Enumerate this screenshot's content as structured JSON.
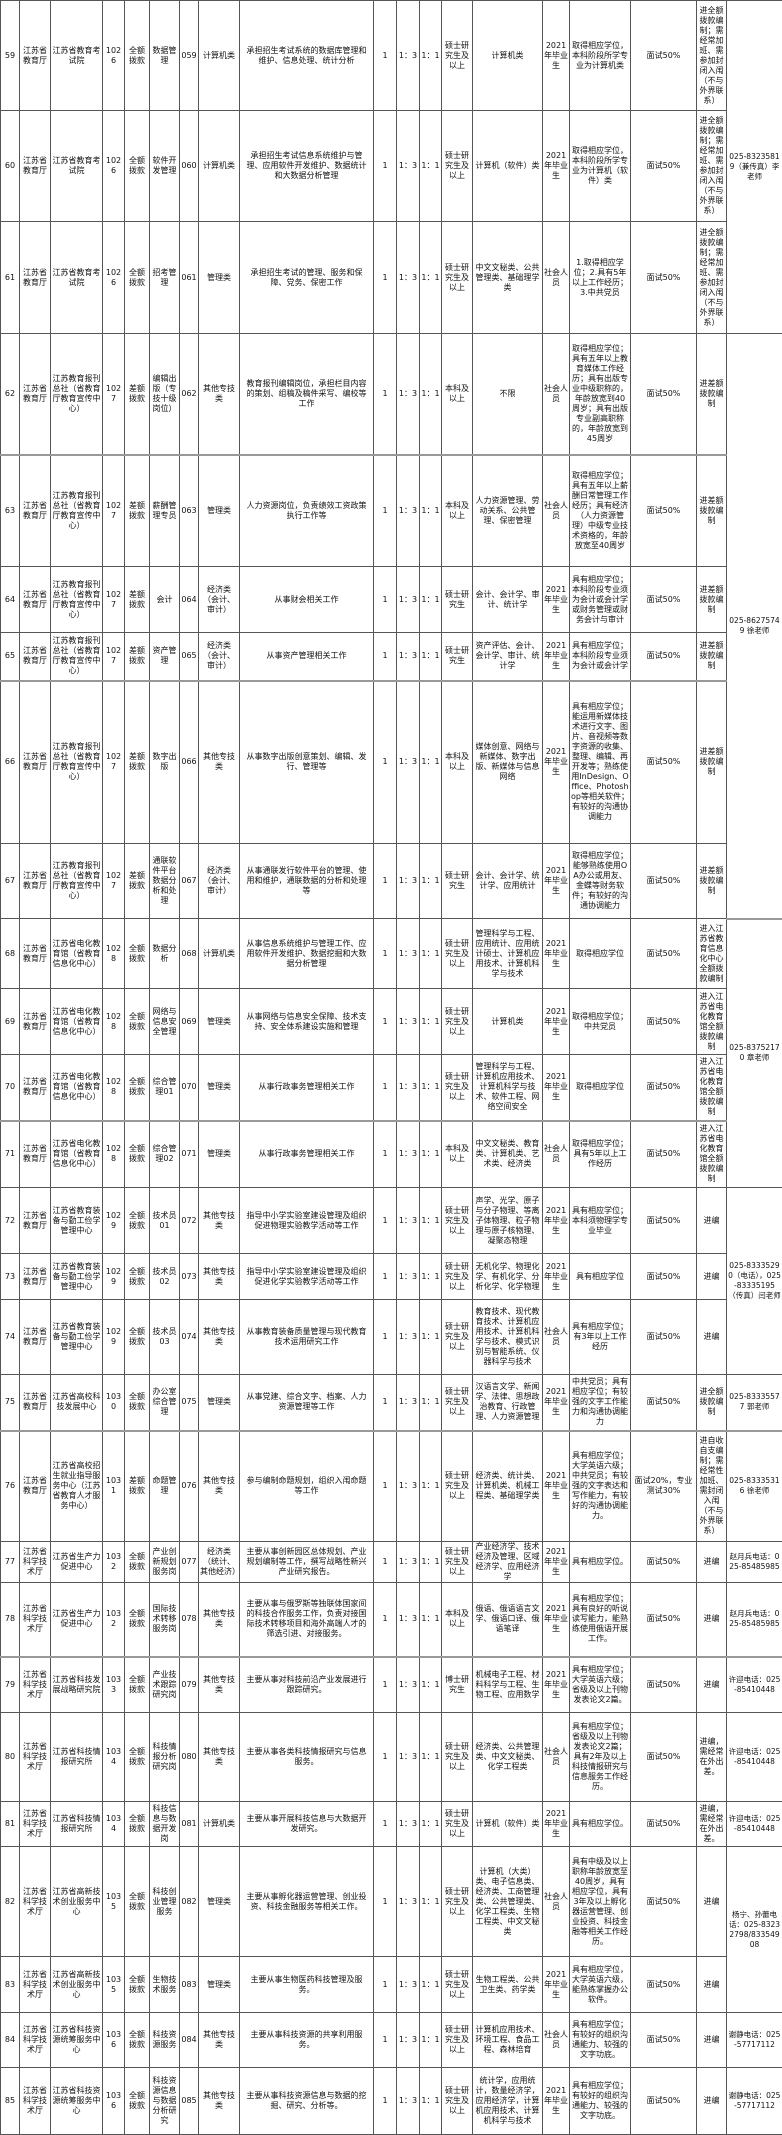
{
  "rows": [
    {
      "no": "59",
      "dept": "江苏省教育厅",
      "unit": "江苏省教育考试院",
      "code": "1026",
      "fund": "全额拨款",
      "pos": "数据管理",
      "pcode": "059",
      "cat": "计算机类",
      "desc": "承担招生考试系统的数据库管理和维护、信息处理、统计分析",
      "n": "1",
      "r1": "1：3",
      "r2": "1：1",
      "edu": "硕士研究生及以上",
      "major": "计算机类",
      "target": "2021年毕业生",
      "cond": "取得相应学位，本科阶段所学专业为计算机类",
      "exam": "面试50%",
      "note": "进全额拨款编制；需经常加班、需参加封闭入闱（不与外界联系）",
      "contact": "025-83235819（兼传真）李老师",
      "span": 3
    },
    {
      "no": "60",
      "dept": "江苏省教育厅",
      "unit": "江苏省教育考试院",
      "code": "1026",
      "fund": "全额拨款",
      "pos": "软件开发管理",
      "pcode": "060",
      "cat": "计算机类",
      "desc": "承担招生考试信息系统维护与管理、应用软件开发维护、数据统计和大数据分析管理",
      "n": "1",
      "r1": "1：3",
      "r2": "1：1",
      "edu": "硕士研究生及以上",
      "major": "计算机（软件）类",
      "target": "2021年毕业生",
      "cond": "取得相应学位，本科阶段所学专业为计算机（软件）类",
      "exam": "面试50%",
      "note": "进全额拨款编制；需经常加班、需参加封闭入闱（不与外界联系）"
    },
    {
      "no": "61",
      "dept": "江苏省教育厅",
      "unit": "江苏省教育考试院",
      "code": "1026",
      "fund": "全额拨款",
      "pos": "招考管理",
      "pcode": "061",
      "cat": "管理类",
      "desc": "承担招生考试的管理、服务和保障、党务、保密工作",
      "n": "1",
      "r1": "1：3",
      "r2": "1：1",
      "edu": "硕士研究生及以上",
      "major": "中文文秘类、公共管理类、基础理学类",
      "target": "社会人员",
      "cond": "1.取得相应学位；2.具有5年以上工作经历；3.中共党员",
      "exam": "面试50%",
      "note": "进全额拨款编制；需经常加班、需参加封闭入闱（不与外界联系）"
    },
    {
      "no": "62",
      "dept": "江苏省教育厅",
      "unit": "江苏教育报刊总社（省教育厅教育宣传中心）",
      "code": "1027",
      "fund": "差额拨款",
      "pos": "编辑出版（专技十级岗位）",
      "pcode": "062",
      "cat": "其他专技类",
      "desc": "教育报刊编辑岗位，承担栏目内容的策划、组稿及稿件采写、编校等工作",
      "n": "1",
      "r1": "1：3",
      "r2": "1：1",
      "edu": "本科及以上",
      "major": "不限",
      "target": "社会人员",
      "cond": "取得相应学位；具有五年以上教育媒体工作经历；具有出版专业中级职称的，年龄放宽到40周岁；具有出版专业副高职称的，年龄放宽到45周岁",
      "exam": "面试50%",
      "note": "进差额拨款编制",
      "contact": "025-86275749 徐老师",
      "span": 6,
      "sep": true
    },
    {
      "no": "63",
      "dept": "江苏省教育厅",
      "unit": "江苏教育报刊总社（省教育厅教育宣传中心）",
      "code": "1027",
      "fund": "差额拨款",
      "pos": "薪酬管理专员",
      "pcode": "063",
      "cat": "管理类",
      "desc": "人力资源岗位，负责绩效工资政策执行工作等",
      "n": "1",
      "r1": "1：3",
      "r2": "1：1",
      "edu": "本科及以上",
      "major": "人力资源管理、劳动关系、公共管理、保密管理",
      "target": "社会人员",
      "cond": "取得相应学位；具有五年以上薪酬日常管理工作经历；具有经济（人力资源管理）中级专业技术资格的，年龄放宽至40周岁",
      "exam": "面试50%",
      "note": "进差额拨款编制"
    },
    {
      "no": "64",
      "dept": "江苏省教育厅",
      "unit": "江苏教育报刊总社（省教育厅教育宣传中心）",
      "code": "1027",
      "fund": "差额拨款",
      "pos": "会计",
      "pcode": "064",
      "cat": "经济类（会计、审计）",
      "desc": "从事财会相关工作",
      "n": "1",
      "r1": "1：3",
      "r2": "1：1",
      "edu": "硕士研究生",
      "major": "会计、会计学、审计、统计学",
      "target": "2021年毕业生",
      "cond": "具有相应学位；本科阶段专业须为会计或会计学或财务管理或财务会计与审计",
      "exam": "面试50%",
      "note": "进差额拨款编制"
    },
    {
      "no": "65",
      "dept": "江苏省教育厅",
      "unit": "江苏教育报刊总社（省教育厅教育宣传中心）",
      "code": "1027",
      "fund": "差额拨款",
      "pos": "资产管理",
      "pcode": "065",
      "cat": "经济类（会计、审计）",
      "desc": "从事资产管理相关工作",
      "n": "1",
      "r1": "1：3",
      "r2": "1：1",
      "edu": "硕士研究生",
      "major": "资产评估、会计、会计学、审计、统计学",
      "target": "2021年毕业生",
      "cond": "具有相应学位；本科阶段专业须为会计或会计学",
      "exam": "面试50%",
      "note": "进差额拨款编制",
      "sep": true
    },
    {
      "no": "66",
      "dept": "江苏省教育厅",
      "unit": "江苏教育报刊总社（省教育厅教育宣传中心）",
      "code": "1027",
      "fund": "差额拨款",
      "pos": "数字出版",
      "pcode": "066",
      "cat": "其他专技类",
      "desc": "从事数字出版创意策划、编辑、发行、管理等",
      "n": "1",
      "r1": "1：3",
      "r2": "1：1",
      "edu": "本科及以上",
      "major": "媒体创意、网络与新媒体、数字出版、新媒体与信息网络",
      "target": "2021年毕业生",
      "cond": "具有相应学位；能运用新媒体技术进行文字、图片、音视频等数字资源的收集、整理、编辑、再开发等；熟练使用InDesign、Office、Photoshop等相关软件；有较好的沟通协调能力",
      "exam": "面试50%",
      "note": "进差额拨款编制"
    },
    {
      "no": "67",
      "dept": "江苏省教育厅",
      "unit": "江苏教育报刊总社（省教育厅教育宣传中心）",
      "code": "1027",
      "fund": "差额拨款",
      "pos": "通联软件平台数据分析和处理",
      "pcode": "067",
      "cat": "经济类（会计、审计）",
      "desc": "从事通联发行软件平台的管理、使用和维护，通联数据的分析和处理等",
      "n": "1",
      "r1": "1：3",
      "r2": "1：1",
      "edu": "硕士研究生",
      "major": "会计、会计学、统计学、应用统计",
      "target": "2021年毕业生",
      "cond": "取得相应学位；能够熟练使用OA办公或用友、金蝶等财务软件；有较好的沟通协调能力",
      "exam": "面试50%",
      "note": "进差额拨款编制"
    },
    {
      "no": "68",
      "dept": "江苏省教育厅",
      "unit": "江苏省电化教育馆（省教育信息化中心）",
      "code": "1028",
      "fund": "全额拨款",
      "pos": "数据分析",
      "pcode": "068",
      "cat": "计算机类",
      "desc": "从事信息系统维护与管理工作、应用软件开发维护、数据挖掘和大数据分析管理",
      "n": "1",
      "r1": "1：3",
      "r2": "1：1",
      "edu": "硕士研究生及以上",
      "major": "管理科学与工程、应用统计、应用统计硕士、计算机应用技术、计算机科学与技术",
      "target": "2021年毕业生",
      "cond": "取得相应学位",
      "exam": "面试50%",
      "note": "进入江苏省教育信息化中心全额拨款编制",
      "contact": "025-83752170 章老师",
      "span": 4
    },
    {
      "no": "69",
      "dept": "江苏省教育厅",
      "unit": "江苏省电化教育馆（省教育信息化中心）",
      "code": "1028",
      "fund": "全额拨款",
      "pos": "网络与信息安全管理",
      "pcode": "069",
      "cat": "管理类",
      "desc": "从事网络与信息安全保障、技术支持、安全体系建设实施和管理",
      "n": "1",
      "r1": "1：3",
      "r2": "1：1",
      "edu": "硕士研究生及以上",
      "major": "计算机类",
      "target": "2021年毕业生",
      "cond": "取得相应学位；中共党员",
      "exam": "面试50%",
      "note": "进入江苏省电化教育馆全额拨款编制"
    },
    {
      "no": "70",
      "dept": "江苏省教育厅",
      "unit": "江苏省电化教育馆（省教育信息化中心）",
      "code": "1028",
      "fund": "全额拨款",
      "pos": "综合管理01",
      "pcode": "070",
      "cat": "管理类",
      "desc": "从事行政事务管理相关工作",
      "n": "1",
      "r1": "1：3",
      "r2": "1：1",
      "edu": "硕士研究生及以上",
      "major": "管理科学与工程、计算机应用技术、计算机科学与技术、软件工程、网络空间安全",
      "target": "2021年毕业生",
      "cond": "取得相应学位",
      "exam": "面试50%",
      "note": "进入江苏省电化教育馆全额拨款编制",
      "sep": true
    },
    {
      "no": "71",
      "dept": "江苏省教育厅",
      "unit": "江苏省电化教育馆（省教育信息化中心）",
      "code": "1028",
      "fund": "全额拨款",
      "pos": "综合管理02",
      "pcode": "071",
      "cat": "管理类",
      "desc": "从事行政事务管理相关工作",
      "n": "1",
      "r1": "1：3",
      "r2": "1：1",
      "edu": "本科及以上",
      "major": "中文文秘类、教育类、计算机类、艺术类、经济类",
      "target": "社会人员",
      "cond": "取得相应学位；具有5年以上工作经历",
      "exam": "面试50%",
      "note": "进入江苏省电化教育馆全额拨款编制"
    },
    {
      "no": "72",
      "dept": "江苏省教育厅",
      "unit": "江苏省教育装备与勤工俭学管理中心",
      "code": "1029",
      "fund": "全额拨款",
      "pos": "技术员01",
      "pcode": "072",
      "cat": "其他专技类",
      "desc": "指导中小学实验室建设管理及组织促进物理实验教学活动等工作",
      "n": "1",
      "r1": "1：3",
      "r2": "1：1",
      "edu": "硕士研究生及以上",
      "major": "声学、光学、原子与分子物理、等离子体物理、粒子物理与原子核物理、凝聚态物理",
      "target": "2021年毕业生",
      "cond": "具有相应学位；本科须物理学专业毕业",
      "exam": "面试50%",
      "note": "进编",
      "contact": "025-83335290（电话），025-83335195（传真）闫老师",
      "span": 3
    },
    {
      "no": "73",
      "dept": "江苏省教育厅",
      "unit": "江苏省教育装备与勤工俭学管理中心",
      "code": "1029",
      "fund": "全额拨款",
      "pos": "技术员02",
      "pcode": "073",
      "cat": "其他专技类",
      "desc": "指导中小学实验室建设管理及组织促进化学实验教学活动等工作",
      "n": "1",
      "r1": "1：3",
      "r2": "1：1",
      "edu": "硕士研究生及以上",
      "major": "无机化学、物理化学、有机化学、分析化学、化学物理",
      "target": "2021年毕业生",
      "cond": "具有相应学位",
      "exam": "面试50%",
      "note": "进编"
    },
    {
      "no": "74",
      "dept": "江苏省教育厅",
      "unit": "江苏省教育装备与勤工俭学管理中心",
      "code": "1029",
      "fund": "全额拨款",
      "pos": "技术员03",
      "pcode": "074",
      "cat": "其他专技类",
      "desc": "从事教育装备质量管理与现代教育技术运用研究工作",
      "n": "1",
      "r1": "1：3",
      "r2": "1：1",
      "edu": "硕士研究生及以上",
      "major": "教育技术、现代教育技术、计算机应用技术、计算机科学与技术、模式识别与智能系统、仪器科学与技术",
      "target": "社会人员",
      "cond": "具有相应学位；有3年以上工作经历",
      "exam": "面试50%",
      "note": "进编"
    },
    {
      "no": "75",
      "dept": "江苏省教育厅",
      "unit": "江苏省高校科技发展中心",
      "code": "1030",
      "fund": "全额拨款",
      "pos": "办公室综合管理",
      "pcode": "075",
      "cat": "管理类",
      "desc": "从事党建、综合文字、档案、人力资源管理等工作",
      "n": "1",
      "r1": "1：3",
      "r2": "1：1",
      "edu": "硕士研究生及以上",
      "major": "汉语言文学、新闻学、法律、思想政治教育、行政管理、人力资源管理",
      "target": "2021年毕业生",
      "cond": "中共党员；具有相应学位；有较强的文字工作能力和沟通协调能力",
      "exam": "面试50%",
      "note": "进全额拨款编制",
      "contact": "025-83335577 郭老师",
      "span": 1,
      "sep": true
    },
    {
      "no": "76",
      "dept": "江苏省教育厅",
      "unit": "江苏省高校招生就业指导服务中心（江苏省教育人才服务中心）",
      "code": "1031",
      "fund": "差额拨款",
      "pos": "命题管理",
      "pcode": "076",
      "cat": "其他专技类",
      "desc": "参与编制命题规划，组织入闱命题等工作",
      "n": "1",
      "r1": "1：3",
      "r2": "1：1",
      "edu": "硕士研究生及以上",
      "major": "经济类、统计类、计算机类、机械工程类、基础理学类",
      "target": "2021年毕业生",
      "cond": "具有相应学位；大学英语六级；中共党员；有较强的文字表达和写作能力，有较好的沟通协调能力。",
      "exam": "面试20%，专业测试30%",
      "note": "进自收自支编制；需经常性加班、需封闭入闱（不与外界联系）",
      "contact": "025-83335316 徐老师",
      "span": 1
    },
    {
      "no": "77",
      "dept": "江苏省科学技术厅",
      "unit": "江苏省生产力促进中心",
      "code": "1032",
      "fund": "全额拨款",
      "pos": "产业创新规划服务岗",
      "pcode": "077",
      "cat": "经济类（统计、其他经济）",
      "desc": "主要从事创新园区总体规划、产业规划编制等工作，撰写战略性新兴产业研究报告。",
      "n": "1",
      "r1": "1：3",
      "r2": "1：1",
      "edu": "硕士研究生及以上",
      "major": "产业经济学、技术经济及管理、区域经济学、应用经济学",
      "target": "2021年毕业生",
      "cond": "具有相应学位。",
      "exam": "面试50%",
      "note": "进编",
      "contact": "赵月兵电话：025-85485985",
      "span": 1
    },
    {
      "no": "78",
      "dept": "江苏省科学技术厅",
      "unit": "江苏省生产力促进中心",
      "code": "1032",
      "fund": "全额拨款",
      "pos": "国际技术转移服务岗",
      "pcode": "078",
      "cat": "其他专技类",
      "desc": "主要从事与俄罗斯等独联体国家间的科技合作服务工作，负责对接国际技术转移项目和海外高端人才的筛选引进、对接服务。",
      "n": "1",
      "r1": "1：3",
      "r2": "1：1",
      "edu": "本科及以上",
      "major": "俄语、俄语语言文学、俄语口译、俄语笔译",
      "target": "2021年毕业生",
      "cond": "具有相应学位；具有良好的听说读写能力，能熟练使用俄语开展工作。",
      "exam": "面试50%",
      "note": "进编",
      "contact": "赵月兵电话：025-85485985",
      "span": 1,
      "sep": true
    },
    {
      "no": "79",
      "dept": "江苏省科学技术厅",
      "unit": "江苏省科技发展战略研究院",
      "code": "1033",
      "fund": "全额拨款",
      "pos": "产业技术跟踪研究岗",
      "pcode": "079",
      "cat": "其他专技类",
      "desc": "主要从事对科技前沿产业发展进行跟踪研究。",
      "n": "1",
      "r1": "1：3",
      "r2": "1：1",
      "edu": "博士研究生",
      "major": "机械电子工程、材料科学与工程、生物工程、应用数学",
      "target": "2021年毕业生",
      "cond": "具有相应学位；大学英语六级；省级及以上刊物发表论文2篇。",
      "exam": "面试50%",
      "note": "进编",
      "contact": "许迎电话：025-85410448",
      "span": 1
    },
    {
      "no": "80",
      "dept": "江苏省科学技术厅",
      "unit": "江苏省科技情报研究所",
      "code": "1034",
      "fund": "全额拨款",
      "pos": "科技情报分析研究岗",
      "pcode": "080",
      "cat": "其他专技类",
      "desc": "主要从事各类科技情报研究与信息服务。",
      "n": "1",
      "r1": "1：3",
      "r2": "1：1",
      "edu": "硕士研究生及以上",
      "major": "经济类、公共管理类、中文文秘类、化学工程类",
      "target": "社会人员",
      "cond": "具有相应学位；省级及以上刊物发表论文2篇；具有2年及以上科技情报研究与信息服务工作经历。",
      "exam": "面试50%",
      "note": "进编，需经常在外出差。",
      "contact": "许迎电话：025-85410448",
      "span": 1
    },
    {
      "no": "81",
      "dept": "江苏省科学技术厅",
      "unit": "江苏省科技情报研究所",
      "code": "1034",
      "fund": "全额拨款",
      "pos": "科技信息与数据开发岗",
      "pcode": "081",
      "cat": "计算机类",
      "desc": "主要从事开展科技信息与大数据开发研究。",
      "n": "1",
      "r1": "1：3",
      "r2": "1：1",
      "edu": "硕士研究生及以上",
      "major": "计算机（软件）类",
      "target": "2021年毕业生",
      "cond": "具有相应学位。",
      "exam": "面试50%",
      "note": "进编，需经常在外出差。",
      "contact": "许迎电话：025-85410448",
      "span": 1
    },
    {
      "no": "82",
      "dept": "江苏省科学技术厅",
      "unit": "江苏省高新技术创业服务中心",
      "code": "1035",
      "fund": "全额拨款",
      "pos": "科技创业管理服务",
      "pcode": "082",
      "cat": "管理类",
      "desc": "主要从事孵化器运营管理、创业投资、科技金融服务等相关工作。",
      "n": "1",
      "r1": "1：3",
      "r2": "1：1",
      "edu": "硕士研究生及以上",
      "major": "计算机（大类）类、电子信息类、经济类、工商管理类、公共管理类、化学工程类、生物工程类、中文文秘类",
      "target": "社会人员",
      "cond": "具有中级及以上职称年龄放宽至40周岁，具有相应学位，具有3年及以上孵化器运营管理、创业投资、科技金融等相关工作经历。",
      "exam": "面试50%",
      "note": "进编",
      "contact": "杨宁、孙蕾电话：025-83232798/83354908",
      "span": 2
    },
    {
      "no": "83",
      "dept": "江苏省科学技术厅",
      "unit": "江苏省高新技术创业服务中心",
      "code": "1035",
      "fund": "全额拨款",
      "pos": "生物技术服务",
      "pcode": "083",
      "cat": "管理类",
      "desc": "主要从事生物医药科技管理及服务。",
      "n": "1",
      "r1": "1：3",
      "r2": "1：1",
      "edu": "硕士研究生及以上",
      "major": "生物工程类、公共卫生类、药学类",
      "target": "2021年毕业生",
      "cond": "具有相应学位，大学英语六级，能熟练掌握办公软件。",
      "exam": "面试50%",
      "note": "进编"
    },
    {
      "no": "84",
      "dept": "江苏省科学技术厅",
      "unit": "江苏省科技资源统筹服务中心",
      "code": "1036",
      "fund": "全额拨款",
      "pos": "科技资源服务",
      "pcode": "084",
      "cat": "其他专技类",
      "desc": "主要从事科技资源的共享利用服务。",
      "n": "1",
      "r1": "1：3",
      "r2": "1：1",
      "edu": "硕士研究生及以上",
      "major": "计算机应用技术、环境工程、食品工程、森林培育",
      "target": "社会人员",
      "cond": "具有相应学位；有较好的组织沟通能力、较强的文字功底。",
      "exam": "面试50%",
      "note": "进编",
      "contact": "谢静电话：025-57717112",
      "span": 1
    },
    {
      "no": "85",
      "dept": "江苏省科学技术厅",
      "unit": "江苏省科技资源统筹服务中心",
      "code": "1036",
      "fund": "全额拨款",
      "pos": "科技资源信息与数据分析研究",
      "pcode": "085",
      "cat": "其他专技类",
      "desc": "主要从事科技资源信息与数据的挖掘、研究、分析等。",
      "n": "1",
      "r1": "1：3",
      "r2": "1：1",
      "edu": "硕士研究生及以上",
      "major": "统计学，应用统计，数量经济学，应用经济学，计算机应用技术、计算机科学与技术",
      "target": "2021年毕业生",
      "cond": "具有相应学位；有较好的组织沟通能力、较强的文字功底。",
      "exam": "面试50%",
      "note": "进编",
      "contact": "谢静电话：025-57717112",
      "span": 1
    }
  ]
}
